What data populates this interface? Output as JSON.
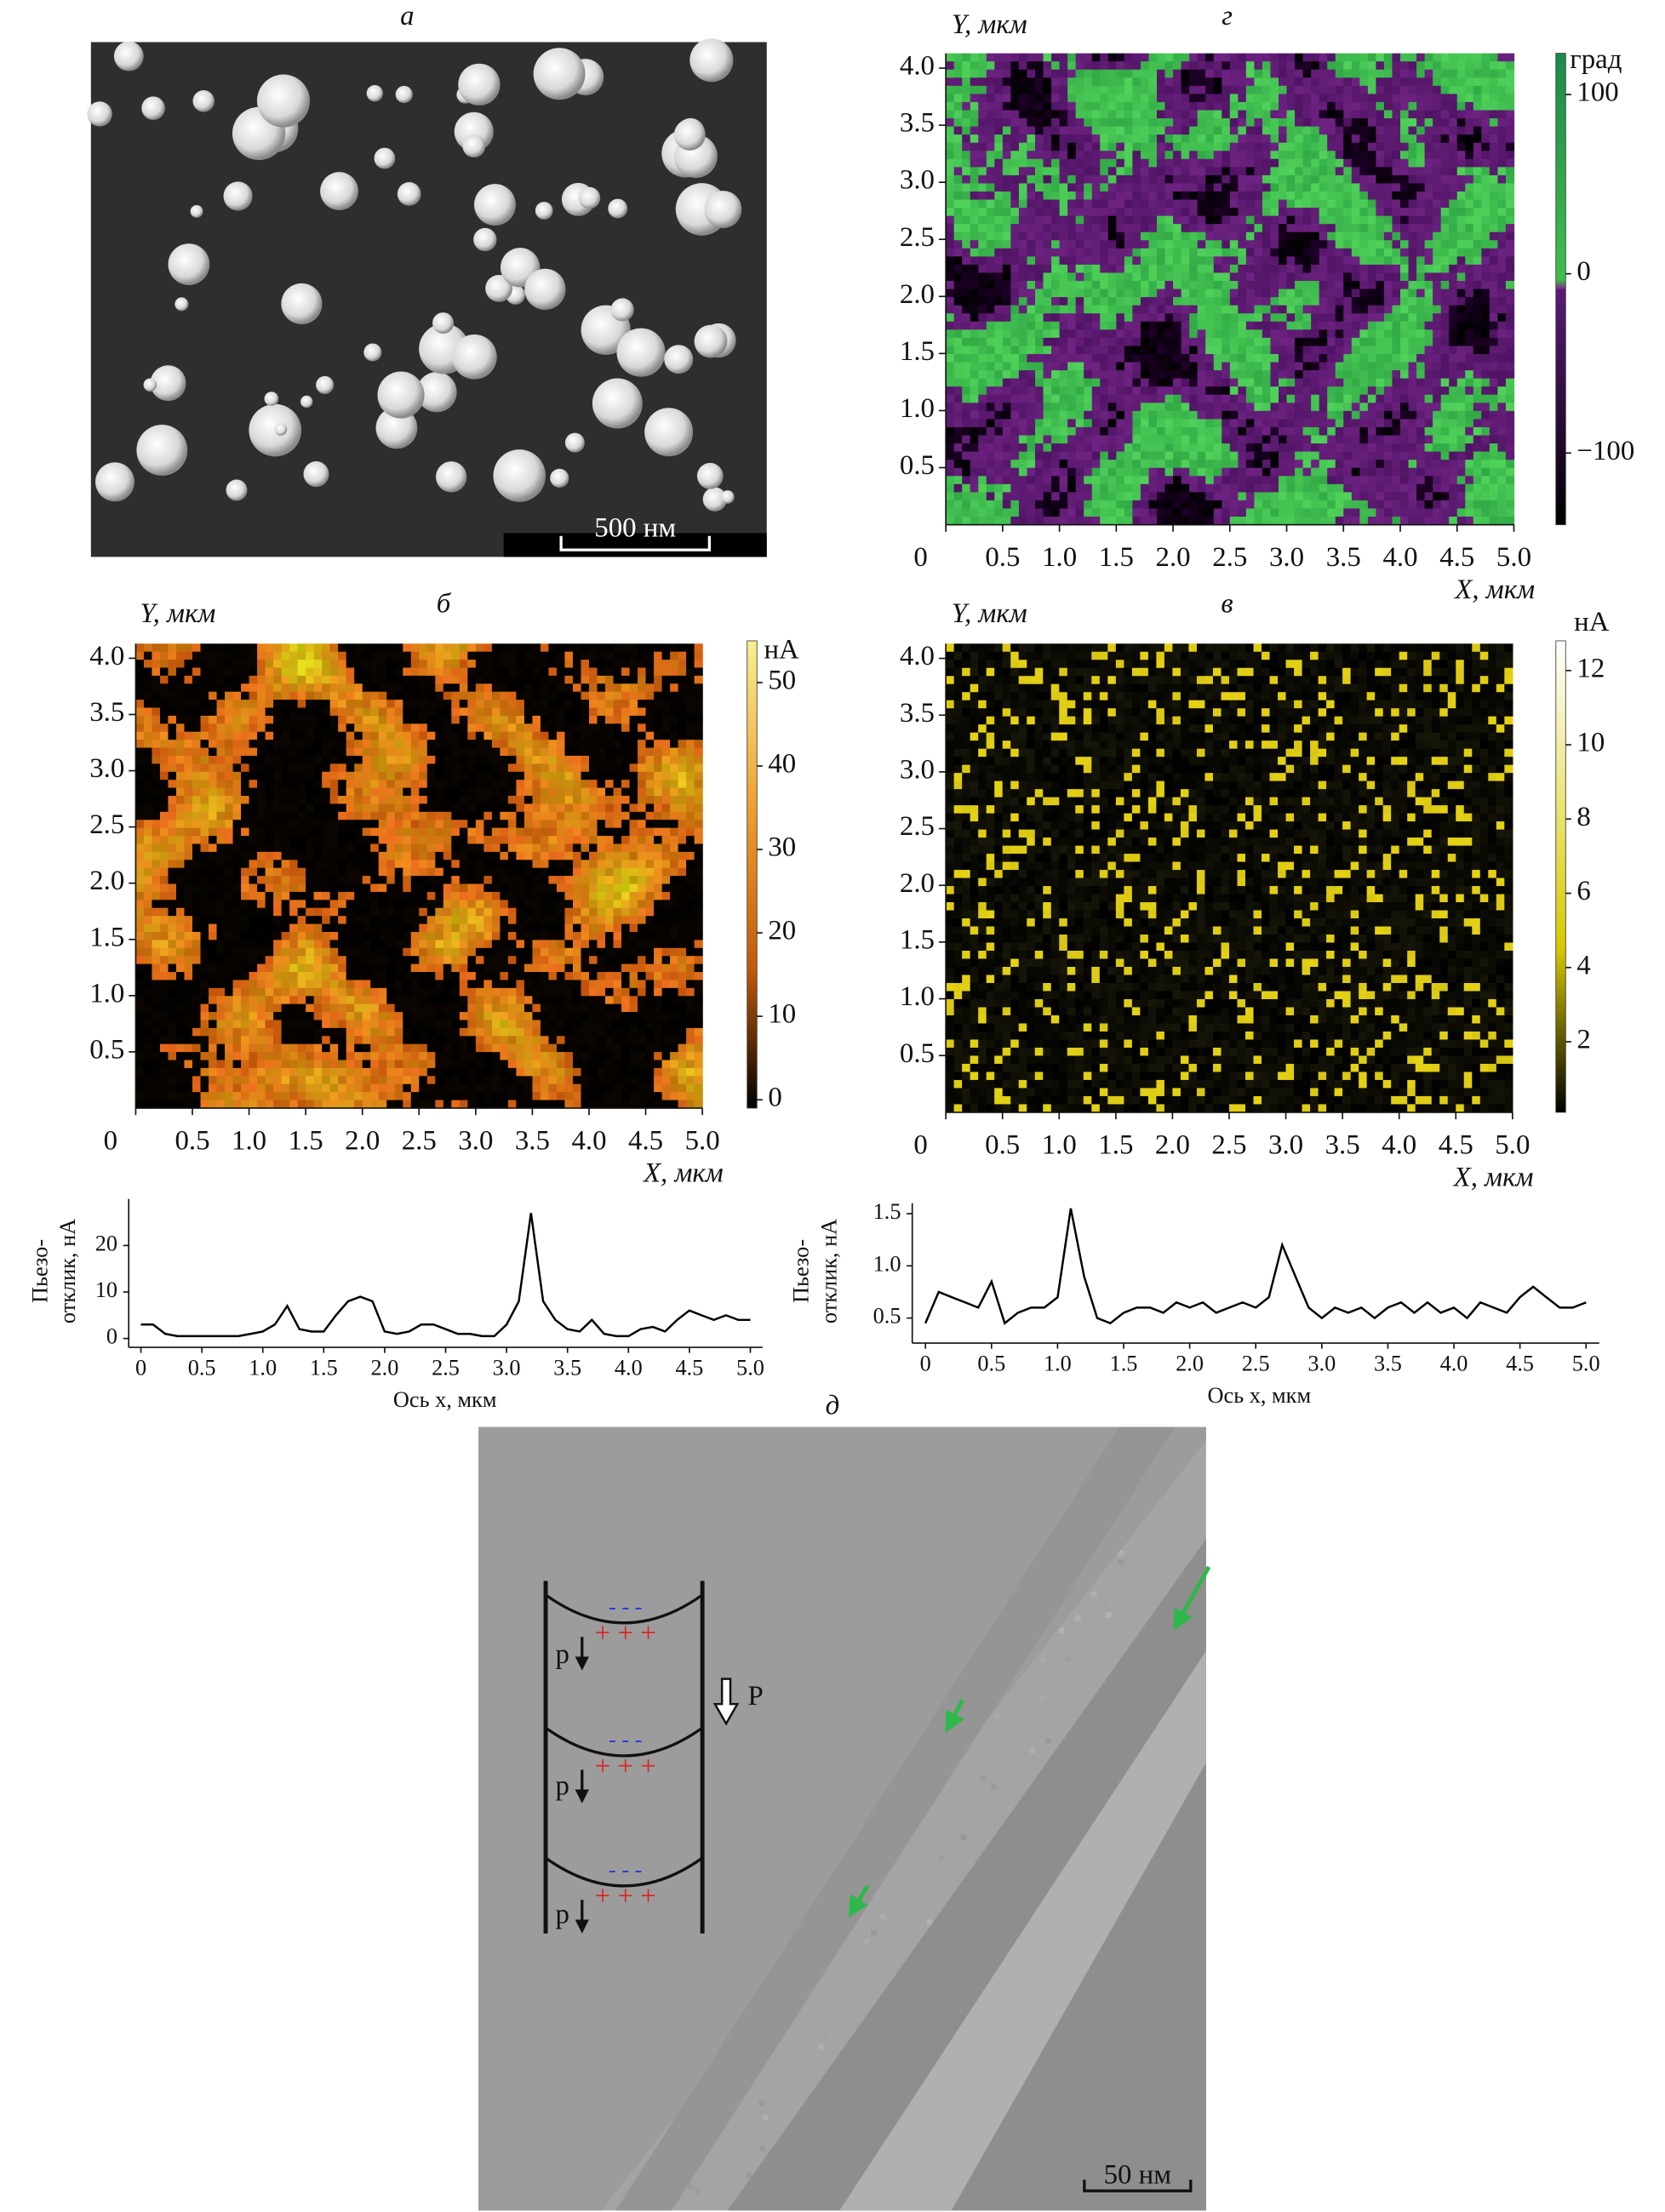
{
  "panel_a": {
    "label": "а",
    "scale_bar": "500 нм"
  },
  "chart_data": [
    {
      "type": "map",
      "label": "г",
      "colormap": "phase",
      "x_label": "X, мкм",
      "y_label": "Y, мкм",
      "xlim": [
        0,
        5
      ],
      "ylim": [
        0,
        4.13
      ],
      "xticks": [
        0,
        0.5,
        {
          "value": 1,
          "label": "1.0"
        },
        1.5,
        {
          "value": 2,
          "label": "2.0"
        },
        2.5,
        {
          "value": 3,
          "label": "3.0"
        },
        3.5,
        {
          "value": 4,
          "label": "4.0"
        },
        4.5,
        {
          "value": 5,
          "label": "5.0"
        }
      ],
      "yticks": [
        0.5,
        {
          "value": 1,
          "label": "1.0"
        },
        1.5,
        {
          "value": 2,
          "label": "2.0"
        },
        2.5,
        {
          "value": 3,
          "label": "3.0"
        },
        3.5,
        {
          "value": 4,
          "label": "4.0"
        }
      ],
      "colorbar": {
        "unit": "град",
        "lim": [
          -140,
          123
        ],
        "ticks": [
          100,
          0,
          {
            "value": -100,
            "label": "−100"
          }
        ]
      }
    },
    {
      "type": "map",
      "label": "б",
      "colormap": "orange",
      "x_label": "X, мкм",
      "y_label": "Y, мкм",
      "xlim": [
        0,
        5
      ],
      "ylim": [
        0,
        4.13
      ],
      "xticks": [
        0,
        0.5,
        {
          "value": 1,
          "label": "1.0"
        },
        1.5,
        {
          "value": 2,
          "label": "2.0"
        },
        2.5,
        {
          "value": 3,
          "label": "3.0"
        },
        3.5,
        {
          "value": 4,
          "label": "4.0"
        },
        4.5,
        {
          "value": 5,
          "label": "5.0"
        }
      ],
      "yticks": [
        0.5,
        {
          "value": 1,
          "label": "1.0"
        },
        1.5,
        {
          "value": 2,
          "label": "2.0"
        },
        2.5,
        {
          "value": 3,
          "label": "3.0"
        },
        3.5,
        {
          "value": 4,
          "label": "4.0"
        }
      ],
      "colorbar": {
        "unit": "нА",
        "lim": [
          -1,
          55
        ],
        "ticks": [
          0,
          10,
          20,
          30,
          40,
          50
        ]
      }
    },
    {
      "type": "map",
      "label": "в",
      "colormap": "yellow",
      "x_label": "X, мкм",
      "y_label": "Y, мкм",
      "xlim": [
        0,
        5
      ],
      "ylim": [
        0,
        4.13
      ],
      "xticks": [
        0,
        0.5,
        {
          "value": 1,
          "label": "1.0"
        },
        1.5,
        {
          "value": 2,
          "label": "2.0"
        },
        2.5,
        {
          "value": 3,
          "label": "3.0"
        },
        3.5,
        {
          "value": 4,
          "label": "4.0"
        },
        4.5,
        {
          "value": 5,
          "label": "5.0"
        }
      ],
      "yticks": [
        0.5,
        {
          "value": 1,
          "label": "1.0"
        },
        1.5,
        {
          "value": 2,
          "label": "2.0"
        },
        2.5,
        {
          "value": 3,
          "label": "3.0"
        },
        3.5,
        {
          "value": 4,
          "label": "4.0"
        }
      ],
      "colorbar": {
        "unit": "нА",
        "lim": [
          0.1,
          12.8
        ],
        "ticks": [
          2,
          4,
          6,
          8,
          10,
          12
        ]
      }
    },
    {
      "type": "line",
      "x_label": "Ось x, мкм",
      "y_label": [
        "Пьезо-",
        "отклик, нА"
      ],
      "color": "#000000",
      "xlim": [
        -0.1,
        5.1
      ],
      "ylim": [
        -1,
        30
      ],
      "xticks": [
        0,
        0.5,
        {
          "value": 1,
          "label": "1.0"
        },
        1.5,
        {
          "value": 2,
          "label": "2.0"
        },
        2.5,
        {
          "value": 3,
          "label": "3.0"
        },
        3.5,
        {
          "value": 4,
          "label": "4.0"
        },
        4.5,
        {
          "value": 5,
          "label": "5.0"
        }
      ],
      "yticks": [
        0,
        10,
        20
      ],
      "x": [
        0,
        0.1,
        0.2,
        0.3,
        0.4,
        0.5,
        0.6,
        0.7,
        0.8,
        0.9,
        1.0,
        1.1,
        1.2,
        1.3,
        1.4,
        1.5,
        1.6,
        1.7,
        1.8,
        1.9,
        2.0,
        2.1,
        2.2,
        2.3,
        2.4,
        2.5,
        2.6,
        2.7,
        2.8,
        2.9,
        3.0,
        3.1,
        3.2,
        3.3,
        3.4,
        3.5,
        3.6,
        3.7,
        3.8,
        3.9,
        4.0,
        4.1,
        4.2,
        4.3,
        4.4,
        4.5,
        4.6,
        4.7,
        4.8,
        4.9,
        5.0
      ],
      "values": [
        3,
        3,
        1,
        0.5,
        0.5,
        0.5,
        0.5,
        0.5,
        0.5,
        1,
        1.5,
        3,
        7,
        2,
        1.5,
        1.5,
        5,
        8,
        9,
        8,
        1.5,
        1,
        1.5,
        3,
        3,
        2,
        1,
        1,
        0.5,
        0.5,
        3,
        8,
        27,
        8,
        4,
        2,
        1.5,
        4,
        1,
        0.5,
        0.5,
        2,
        2.5,
        1.5,
        4,
        6,
        5,
        4,
        5,
        4,
        4
      ]
    },
    {
      "type": "line",
      "x_label": "Ось x, мкм",
      "y_label": [
        "Пьезо-",
        "отклик, нА"
      ],
      "color": "#000000",
      "xlim": [
        -0.1,
        5.1
      ],
      "ylim": [
        0.3,
        1.6
      ],
      "xticks": [
        0,
        0.5,
        {
          "value": 1,
          "label": "1.0"
        },
        1.5,
        {
          "value": 2,
          "label": "2.0"
        },
        2.5,
        {
          "value": 3,
          "label": "3.0"
        },
        3.5,
        {
          "value": 4,
          "label": "4.0"
        },
        4.5,
        {
          "value": 5,
          "label": "5.0"
        }
      ],
      "yticks": [
        0.5,
        {
          "value": 1,
          "label": "1.0"
        },
        1.5
      ],
      "x": [
        0,
        0.1,
        0.2,
        0.3,
        0.4,
        0.5,
        0.6,
        0.7,
        0.8,
        0.9,
        1.0,
        1.1,
        1.2,
        1.3,
        1.4,
        1.5,
        1.6,
        1.7,
        1.8,
        1.9,
        2.0,
        2.1,
        2.2,
        2.3,
        2.4,
        2.5,
        2.6,
        2.7,
        2.8,
        2.9,
        3.0,
        3.1,
        3.2,
        3.3,
        3.4,
        3.5,
        3.6,
        3.7,
        3.8,
        3.9,
        4.0,
        4.1,
        4.2,
        4.3,
        4.4,
        4.5,
        4.6,
        4.7,
        4.8,
        4.9,
        5.0
      ],
      "values": [
        0.45,
        0.75,
        0.7,
        0.65,
        0.6,
        0.85,
        0.45,
        0.55,
        0.6,
        0.6,
        0.7,
        1.55,
        0.9,
        0.5,
        0.45,
        0.55,
        0.6,
        0.6,
        0.55,
        0.65,
        0.6,
        0.65,
        0.55,
        0.6,
        0.65,
        0.6,
        0.7,
        1.2,
        0.9,
        0.6,
        0.5,
        0.6,
        0.55,
        0.6,
        0.5,
        0.6,
        0.65,
        0.55,
        0.65,
        0.55,
        0.6,
        0.5,
        0.65,
        0.6,
        0.55,
        0.7,
        0.8,
        0.7,
        0.6,
        0.6,
        0.65
      ]
    }
  ],
  "panel_d": {
    "label": "д",
    "scale_bar": "50 нм",
    "dipole_label": "p",
    "polarization_label": "P",
    "minus": "- - -",
    "plus": "+ + +"
  }
}
